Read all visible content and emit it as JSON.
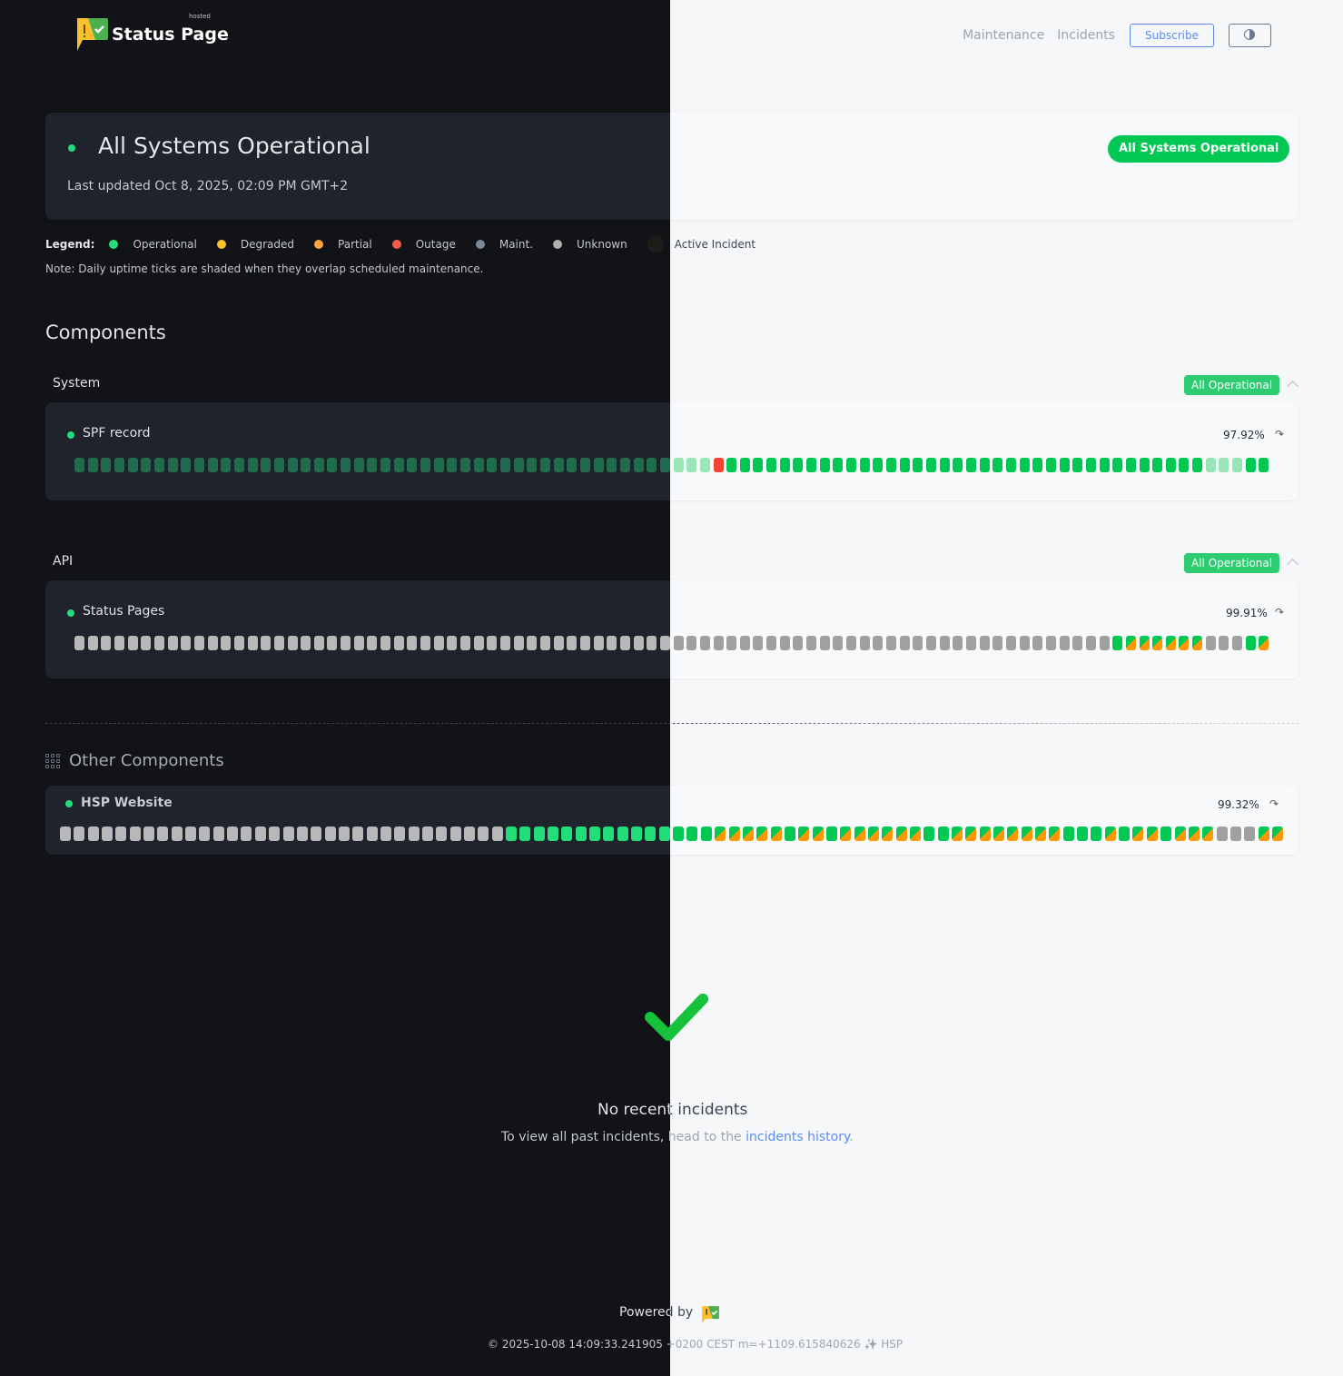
{
  "header": {
    "logo_text": "Status Page",
    "logo_sup": "hosted",
    "nav": [
      "Maintenance",
      "Incidents"
    ],
    "subscribe": "Subscribe",
    "theme_toggle_icon": "half-circle-icon"
  },
  "status": {
    "title": "All Systems Operational",
    "updated": "Last updated Oct 8, 2025, 02:09 PM GMT+2",
    "badge": "All Systems Operational"
  },
  "legend": {
    "label": "Legend:",
    "items": [
      {
        "label": "Operational",
        "color": "#22dd7a"
      },
      {
        "label": "Degraded",
        "color": "#fbc02d"
      },
      {
        "label": "Partial",
        "color": "#ffa23a"
      },
      {
        "label": "Outage",
        "color": "#f45b4b"
      },
      {
        "label": "Maint.",
        "color": "#7b8a96"
      },
      {
        "label": "Unknown",
        "color": "#b0b0b0"
      },
      {
        "label": "Active Incident",
        "color": "#1f1d1a"
      }
    ],
    "note": "Note: Daily uptime ticks are shaded when they overlap scheduled maintenance."
  },
  "components_title": "Components",
  "groups": [
    {
      "name": "System",
      "badge": "All Operational",
      "components": [
        {
          "name": "SPF record",
          "uptime": "97.92%",
          "ticks": "SSSSSSSSSSSSSSSSSSSSSSSSSSSSSSSSSSSSSSSSSSSSSSSSXOOOOOOOOOOOOOOOOOOOOOOOOOOOOOOOOOOOOSSSOO"
        }
      ]
    },
    {
      "name": "API",
      "badge": "All Operational",
      "components": [
        {
          "name": "Status Pages",
          "uptime": "99.91%",
          "ticks": "UUUUUUUUUUUUUUUUUUUUUUUUUUUUUUUUUUUUUUUUUUUUUUUUUUUUUUUUUUUUUUUUUUUUUUUUUUUUUUOPPPPPPUUUOP"
        }
      ]
    }
  ],
  "other": {
    "title": "Other Components",
    "icon": "grid-icon",
    "components": [
      {
        "name": "HSP Website",
        "uptime": "99.32%",
        "ticks": "UUUUUUUUUUUUUUUUUUUUUUUUUUUUUUUUOOOOOOOOOOOOOOOPPPPPOPPOPPPPPPOOPPPPPPPPOOOPOPPOPPPUUUPP"
      }
    ]
  },
  "tick_colors": {
    "O": {
      "dark": "#22dd7a",
      "light": "#00c853"
    },
    "S": {
      "dark": "#1f6b4b",
      "light": "#98e6b6"
    },
    "X": {
      "dark": "#f45b4b",
      "light": "#f44336"
    },
    "U": {
      "dark": "#b8b8b8",
      "light": "#a0a0a0"
    },
    "P": {
      "dark": "partial",
      "light": "partial"
    }
  },
  "incidents": {
    "title": "No recent incidents",
    "text": "To view all past incidents, head to the ",
    "link": "incidents history",
    "end": "."
  },
  "footer": {
    "powered": "Powered by",
    "stamp": "© 2025-10-08 14:09:33.241905 +0200 CEST m=+1109.615840626 ✨ HSP"
  }
}
